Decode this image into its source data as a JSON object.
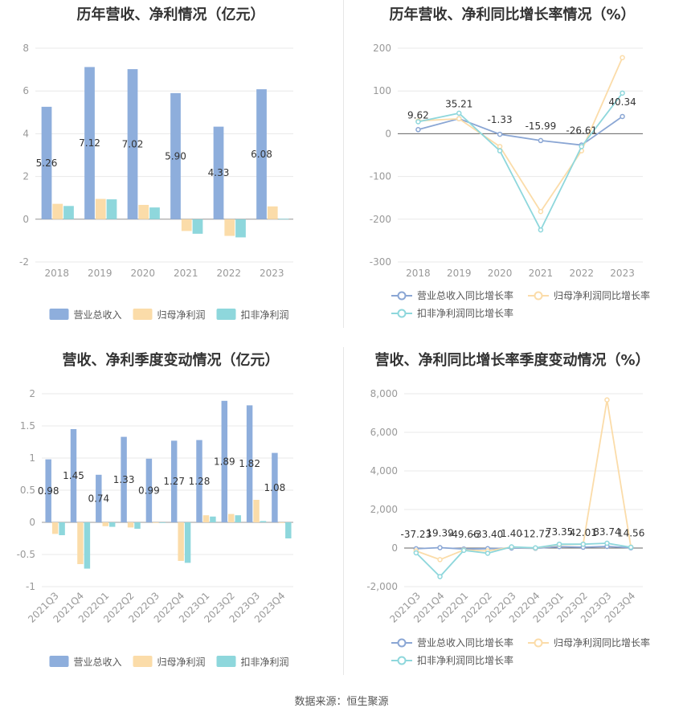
{
  "source_note": "数据来源：恒生聚源",
  "colors": {
    "revenue": "#8eaedc",
    "net_profit": "#fbdca9",
    "deducted_profit": "#8ed7dc",
    "revenue_line": "#8aa6d4",
    "net_line": "#fbdca9",
    "deducted_line": "#8ed7dc",
    "grid": "#e8e8e8",
    "axis_text": "#999999"
  },
  "chart_data": [
    {
      "id": "annual_values",
      "type": "bar",
      "title": "历年营收、净利情况（亿元）",
      "categories": [
        "2018",
        "2019",
        "2020",
        "2021",
        "2022",
        "2023"
      ],
      "ylim": [
        -2,
        8
      ],
      "yticks": [
        "-2",
        "0",
        "2",
        "4",
        "6",
        "8"
      ],
      "grid": true,
      "legend_position": "bottom",
      "series": [
        {
          "name": "营业总收入",
          "values": [
            5.26,
            7.12,
            7.02,
            5.9,
            4.33,
            6.08
          ],
          "labels": [
            "5.26",
            "7.12",
            "7.02",
            "5.90",
            "4.33",
            "6.08"
          ]
        },
        {
          "name": "归母净利润",
          "values": [
            0.72,
            0.95,
            0.67,
            -0.55,
            -0.78,
            0.6
          ]
        },
        {
          "name": "扣非净利润",
          "values": [
            0.62,
            0.93,
            0.55,
            -0.68,
            -0.85,
            0.02
          ]
        }
      ]
    },
    {
      "id": "annual_growth",
      "type": "line",
      "title": "历年营收、净利同比增长率情况（%）",
      "categories": [
        "2018",
        "2019",
        "2020",
        "2021",
        "2022",
        "2023"
      ],
      "ylim": [
        -300,
        200
      ],
      "yticks": [
        "-300",
        "-200",
        "-100",
        "0",
        "100",
        "200"
      ],
      "grid": true,
      "legend_position": "bottom",
      "series": [
        {
          "name": "营业总收入同比增长率",
          "values": [
            9.62,
            35.21,
            -1.33,
            -15.99,
            -26.61,
            40.34
          ],
          "labels": [
            "9.62",
            "35.21",
            "-1.33",
            "-15.99",
            "-26.61",
            "40.34"
          ]
        },
        {
          "name": "归母净利润同比增长率",
          "values": [
            30,
            35,
            -30,
            -182,
            -40,
            178
          ]
        },
        {
          "name": "扣非净利润同比增长率",
          "values": [
            28,
            48,
            -40,
            -225,
            -30,
            95
          ]
        }
      ]
    },
    {
      "id": "quarterly_values",
      "type": "bar",
      "title": "营收、净利季度变动情况（亿元）",
      "categories": [
        "2021Q3",
        "2021Q4",
        "2022Q1",
        "2022Q2",
        "2022Q3",
        "2022Q4",
        "2023Q1",
        "2023Q2",
        "2023Q3",
        "2023Q4"
      ],
      "ylim": [
        -1,
        2
      ],
      "yticks": [
        "-1",
        "-0.5",
        "0",
        "0.5",
        "1",
        "1.5",
        "2"
      ],
      "grid": true,
      "legend_position": "bottom",
      "series": [
        {
          "name": "营业总收入",
          "values": [
            0.98,
            1.45,
            0.74,
            1.33,
            0.99,
            1.27,
            1.28,
            1.89,
            1.82,
            1.08
          ],
          "labels": [
            "0.98",
            "1.45",
            "0.74",
            "1.33",
            "0.99",
            "1.27",
            "1.28",
            "1.89",
            "1.82",
            "1.08"
          ]
        },
        {
          "name": "归母净利润",
          "values": [
            -0.18,
            -0.65,
            -0.06,
            -0.08,
            -0.01,
            -0.6,
            0.11,
            0.13,
            0.35,
            -0.01
          ]
        },
        {
          "name": "扣非净利润",
          "values": [
            -0.2,
            -0.72,
            -0.07,
            -0.1,
            -0.01,
            -0.63,
            0.09,
            0.11,
            0.02,
            -0.25
          ]
        }
      ]
    },
    {
      "id": "quarterly_growth",
      "type": "line",
      "title": "营收、净利同比增长率季度变动情况（%）",
      "categories": [
        "2021Q3",
        "2021Q4",
        "2022Q1",
        "2022Q2",
        "2022Q3",
        "2022Q4",
        "2023Q1",
        "2023Q2",
        "2023Q3",
        "2023Q4"
      ],
      "ylim": [
        -2000,
        8000
      ],
      "yticks": [
        "-2,000",
        "0",
        "2,000",
        "4,000",
        "6,000",
        "8,000"
      ],
      "grid": true,
      "legend_position": "bottom",
      "series": [
        {
          "name": "营业总收入同比增长率",
          "values": [
            -37.23,
            19.39,
            -49.66,
            -33.4,
            1.4,
            -12.72,
            73.35,
            42.01,
            83.74,
            14.56
          ],
          "labels": [
            "-37.23",
            "19.39",
            "-49.66",
            "-33.40",
            "1.40",
            "-12.72",
            "73.35",
            "42.01",
            "83.74",
            "14.56"
          ]
        },
        {
          "name": "归母净利润同比增长率",
          "values": [
            -150,
            -600,
            -100,
            -150,
            50,
            0,
            180,
            200,
            7680,
            50
          ]
        },
        {
          "name": "扣非净利润同比增长率",
          "values": [
            -250,
            -1480,
            -120,
            -270,
            60,
            10,
            200,
            200,
            250,
            40
          ]
        }
      ]
    }
  ]
}
